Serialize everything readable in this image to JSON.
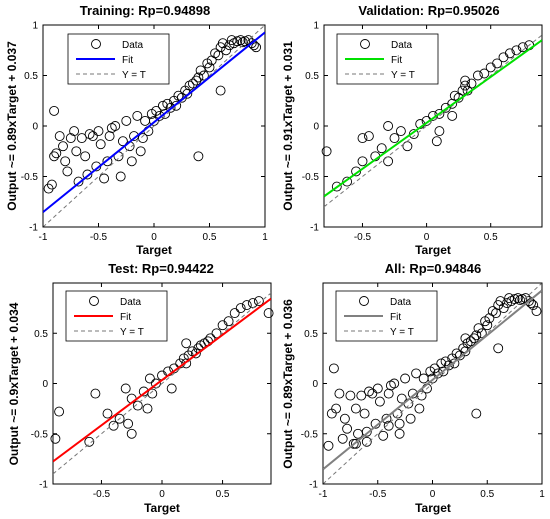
{
  "chart_data": [
    {
      "type": "scatter",
      "title": "Training: Rp=0.94898",
      "xlabel": "Target",
      "ylabel": "Output ~= 0.89xTarget + 0.037",
      "xlim": [
        -1,
        1
      ],
      "ylim": [
        -1,
        1
      ],
      "xticks": [
        "-1",
        "-0.5",
        "0",
        "0.5",
        "1"
      ],
      "yticks": [
        "-1",
        "-0.5",
        "0",
        "0.5",
        "1"
      ],
      "fit": {
        "slope": 0.89,
        "intercept": 0.037,
        "color": "#0000ff"
      },
      "legend": {
        "position": "top-left",
        "entries": [
          "Data",
          "Fit",
          "Y = T"
        ]
      },
      "grid": false,
      "points": [
        [
          -0.95,
          -0.62
        ],
        [
          -0.92,
          -0.58
        ],
        [
          -0.9,
          -0.3
        ],
        [
          -0.88,
          -0.27
        ],
        [
          -0.85,
          -0.1
        ],
        [
          -0.82,
          -0.2
        ],
        [
          -0.8,
          -0.35
        ],
        [
          -0.78,
          -0.45
        ],
        [
          -0.75,
          -0.12
        ],
        [
          -0.72,
          -0.05
        ],
        [
          -0.7,
          -0.25
        ],
        [
          -0.68,
          -0.55
        ],
        [
          -0.65,
          -0.12
        ],
        [
          -0.62,
          -0.3
        ],
        [
          -0.6,
          -0.48
        ],
        [
          -0.58,
          -0.08
        ],
        [
          -0.55,
          -0.1
        ],
        [
          -0.52,
          -0.4
        ],
        [
          -0.5,
          -0.05
        ],
        [
          -0.48,
          -0.18
        ],
        [
          -0.45,
          -0.52
        ],
        [
          -0.42,
          -0.35
        ],
        [
          -0.4,
          -0.1
        ],
        [
          -0.38,
          -0.02
        ],
        [
          -0.35,
          0.0
        ],
        [
          -0.32,
          -0.3
        ],
        [
          -0.3,
          -0.5
        ],
        [
          -0.28,
          -0.15
        ],
        [
          -0.25,
          0.05
        ],
        [
          -0.22,
          -0.2
        ],
        [
          -0.2,
          -0.35
        ],
        [
          -0.18,
          -0.1
        ],
        [
          -0.15,
          0.1
        ],
        [
          -0.12,
          -0.25
        ],
        [
          -0.1,
          -0.12
        ],
        [
          -0.08,
          0.05
        ],
        [
          -0.05,
          -0.05
        ],
        [
          -0.02,
          0.12
        ],
        [
          0.0,
          0.05
        ],
        [
          0.02,
          0.15
        ],
        [
          0.05,
          0.1
        ],
        [
          0.08,
          0.2
        ],
        [
          0.1,
          0.12
        ],
        [
          0.12,
          0.22
        ],
        [
          0.15,
          0.18
        ],
        [
          0.18,
          0.25
        ],
        [
          0.2,
          0.2
        ],
        [
          0.22,
          0.3
        ],
        [
          0.25,
          0.28
        ],
        [
          0.28,
          0.35
        ],
        [
          0.3,
          0.32
        ],
        [
          0.32,
          0.4
        ],
        [
          0.35,
          0.42
        ],
        [
          0.38,
          0.45
        ],
        [
          0.4,
          0.48
        ],
        [
          0.42,
          0.55
        ],
        [
          0.45,
          0.5
        ],
        [
          0.48,
          0.62
        ],
        [
          0.5,
          0.58
        ],
        [
          0.52,
          0.65
        ],
        [
          0.55,
          0.72
        ],
        [
          0.58,
          0.7
        ],
        [
          0.6,
          0.78
        ],
        [
          0.62,
          0.82
        ],
        [
          0.65,
          0.75
        ],
        [
          0.68,
          0.8
        ],
        [
          0.7,
          0.85
        ],
        [
          0.72,
          0.82
        ],
        [
          0.75,
          0.84
        ],
        [
          0.78,
          0.85
        ],
        [
          0.8,
          0.83
        ],
        [
          0.82,
          0.84
        ],
        [
          0.85,
          0.85
        ],
        [
          0.88,
          0.82
        ],
        [
          0.9,
          0.8
        ],
        [
          0.92,
          0.78
        ],
        [
          -0.9,
          0.15
        ],
        [
          0.4,
          -0.3
        ],
        [
          0.6,
          0.35
        ]
      ]
    },
    {
      "type": "scatter",
      "title": "Validation: Rp=0.95026",
      "xlabel": "Target",
      "ylabel": "Output ~= 0.91xTarget + 0.031",
      "xlim": [
        -0.8,
        0.9
      ],
      "ylim": [
        -1,
        1
      ],
      "xticks": [
        "-0.5",
        "0",
        "0.5"
      ],
      "yticks": [
        "-1",
        "-0.5",
        "0",
        "0.5",
        "1"
      ],
      "fit": {
        "slope": 0.91,
        "intercept": 0.031,
        "color": "#00e000"
      },
      "legend": {
        "position": "top-left",
        "entries": [
          "Data",
          "Fit",
          "Y = T"
        ]
      },
      "grid": false,
      "points": [
        [
          -0.78,
          -0.25
        ],
        [
          -0.7,
          -0.6
        ],
        [
          -0.62,
          -0.55
        ],
        [
          -0.55,
          -0.45
        ],
        [
          -0.5,
          -0.12
        ],
        [
          -0.45,
          -0.1
        ],
        [
          -0.4,
          -0.3
        ],
        [
          -0.35,
          -0.22
        ],
        [
          -0.3,
          -0.35
        ],
        [
          -0.25,
          -0.12
        ],
        [
          -0.2,
          -0.05
        ],
        [
          -0.15,
          -0.2
        ],
        [
          -0.1,
          -0.08
        ],
        [
          -0.05,
          0.02
        ],
        [
          0.0,
          0.05
        ],
        [
          0.05,
          0.1
        ],
        [
          0.08,
          -0.15
        ],
        [
          0.1,
          0.12
        ],
        [
          0.15,
          0.18
        ],
        [
          0.2,
          0.22
        ],
        [
          0.22,
          0.3
        ],
        [
          0.25,
          0.28
        ],
        [
          0.28,
          0.35
        ],
        [
          0.3,
          0.4
        ],
        [
          0.32,
          0.35
        ],
        [
          0.35,
          0.42
        ],
        [
          0.4,
          0.5
        ],
        [
          0.45,
          0.52
        ],
        [
          0.5,
          0.58
        ],
        [
          0.55,
          0.62
        ],
        [
          0.6,
          0.68
        ],
        [
          0.65,
          0.72
        ],
        [
          0.7,
          0.75
        ],
        [
          0.75,
          0.78
        ],
        [
          0.8,
          0.8
        ],
        [
          -0.5,
          -0.35
        ],
        [
          -0.3,
          0.0
        ],
        [
          0.3,
          0.45
        ],
        [
          0.2,
          0.1
        ],
        [
          0.1,
          -0.05
        ]
      ]
    },
    {
      "type": "scatter",
      "title": "Test: Rp=0.94422",
      "xlabel": "Target",
      "ylabel": "Output ~= 0.9xTarget + 0.034",
      "xlim": [
        -0.9,
        0.9
      ],
      "ylim": [
        -1,
        1
      ],
      "xticks": [
        "-0.5",
        "0",
        "0.5"
      ],
      "yticks": [
        "-1",
        "-0.5",
        "0",
        "0.5"
      ],
      "fit": {
        "slope": 0.9,
        "intercept": 0.034,
        "color": "#ff0000"
      },
      "legend": {
        "position": "top-left",
        "entries": [
          "Data",
          "Fit",
          "Y = T"
        ]
      },
      "grid": false,
      "points": [
        [
          -0.88,
          -0.55
        ],
        [
          -0.85,
          -0.28
        ],
        [
          -0.6,
          -0.58
        ],
        [
          -0.55,
          -0.1
        ],
        [
          -0.45,
          -0.3
        ],
        [
          -0.4,
          -0.42
        ],
        [
          -0.35,
          -0.35
        ],
        [
          -0.3,
          -0.05
        ],
        [
          -0.28,
          -0.4
        ],
        [
          -0.25,
          -0.15
        ],
        [
          -0.2,
          -0.22
        ],
        [
          -0.15,
          -0.08
        ],
        [
          -0.12,
          -0.25
        ],
        [
          -0.1,
          0.05
        ],
        [
          -0.08,
          -0.1
        ],
        [
          -0.05,
          0.0
        ],
        [
          0.0,
          0.08
        ],
        [
          0.05,
          0.12
        ],
        [
          0.08,
          -0.05
        ],
        [
          0.1,
          0.15
        ],
        [
          0.15,
          0.2
        ],
        [
          0.18,
          0.25
        ],
        [
          0.2,
          0.2
        ],
        [
          0.22,
          0.28
        ],
        [
          0.25,
          0.32
        ],
        [
          0.28,
          0.3
        ],
        [
          0.3,
          0.35
        ],
        [
          0.32,
          0.38
        ],
        [
          0.35,
          0.4
        ],
        [
          0.38,
          0.42
        ],
        [
          0.4,
          0.45
        ],
        [
          0.45,
          0.5
        ],
        [
          0.5,
          0.58
        ],
        [
          0.55,
          0.62
        ],
        [
          0.6,
          0.7
        ],
        [
          0.65,
          0.75
        ],
        [
          0.7,
          0.78
        ],
        [
          0.75,
          0.8
        ],
        [
          0.8,
          0.82
        ],
        [
          0.88,
          0.7
        ],
        [
          -0.25,
          -0.5
        ],
        [
          0.2,
          0.4
        ]
      ]
    },
    {
      "type": "scatter",
      "title": "All: Rp=0.94846",
      "xlabel": "Target",
      "ylabel": "Output ~= 0.89xTarget + 0.036",
      "xlim": [
        -1,
        1
      ],
      "ylim": [
        -1,
        1
      ],
      "xticks": [
        "-1",
        "-0.5",
        "0",
        "0.5",
        "1"
      ],
      "yticks": [
        "-1",
        "-0.5",
        "0",
        "0.5"
      ],
      "fit": {
        "slope": 0.89,
        "intercept": 0.036,
        "color": "#808080"
      },
      "legend": {
        "position": "top-left",
        "entries": [
          "Data",
          "Fit",
          "Y = T"
        ]
      },
      "grid": false,
      "points": [
        [
          -0.95,
          -0.62
        ],
        [
          -0.92,
          -0.3
        ],
        [
          -0.9,
          0.15
        ],
        [
          -0.88,
          -0.25
        ],
        [
          -0.85,
          -0.1
        ],
        [
          -0.82,
          -0.55
        ],
        [
          -0.8,
          -0.35
        ],
        [
          -0.78,
          -0.45
        ],
        [
          -0.75,
          -0.12
        ],
        [
          -0.72,
          -0.6
        ],
        [
          -0.7,
          -0.25
        ],
        [
          -0.68,
          -0.5
        ],
        [
          -0.65,
          -0.12
        ],
        [
          -0.62,
          -0.3
        ],
        [
          -0.6,
          -0.48
        ],
        [
          -0.58,
          -0.08
        ],
        [
          -0.55,
          -0.1
        ],
        [
          -0.52,
          -0.4
        ],
        [
          -0.5,
          -0.05
        ],
        [
          -0.48,
          -0.18
        ],
        [
          -0.45,
          -0.52
        ],
        [
          -0.42,
          -0.35
        ],
        [
          -0.4,
          -0.1
        ],
        [
          -0.38,
          -0.02
        ],
        [
          -0.35,
          0.0
        ],
        [
          -0.32,
          -0.3
        ],
        [
          -0.3,
          -0.5
        ],
        [
          -0.28,
          -0.15
        ],
        [
          -0.25,
          0.05
        ],
        [
          -0.22,
          -0.2
        ],
        [
          -0.2,
          -0.35
        ],
        [
          -0.18,
          -0.1
        ],
        [
          -0.15,
          0.1
        ],
        [
          -0.12,
          -0.25
        ],
        [
          -0.1,
          -0.12
        ],
        [
          -0.08,
          0.05
        ],
        [
          -0.05,
          -0.05
        ],
        [
          -0.02,
          0.12
        ],
        [
          0.0,
          0.05
        ],
        [
          0.02,
          0.15
        ],
        [
          0.05,
          0.1
        ],
        [
          0.08,
          0.2
        ],
        [
          0.1,
          0.12
        ],
        [
          0.12,
          0.22
        ],
        [
          0.15,
          0.18
        ],
        [
          0.18,
          0.25
        ],
        [
          0.2,
          0.2
        ],
        [
          0.22,
          0.3
        ],
        [
          0.25,
          0.28
        ],
        [
          0.28,
          0.35
        ],
        [
          0.3,
          0.32
        ],
        [
          0.32,
          0.4
        ],
        [
          0.35,
          0.42
        ],
        [
          0.38,
          0.45
        ],
        [
          0.4,
          0.48
        ],
        [
          0.42,
          0.55
        ],
        [
          0.45,
          0.5
        ],
        [
          0.48,
          0.62
        ],
        [
          0.5,
          0.58
        ],
        [
          0.52,
          0.65
        ],
        [
          0.55,
          0.72
        ],
        [
          0.58,
          0.7
        ],
        [
          0.6,
          0.78
        ],
        [
          0.62,
          0.82
        ],
        [
          0.65,
          0.75
        ],
        [
          0.68,
          0.8
        ],
        [
          0.7,
          0.85
        ],
        [
          0.72,
          0.82
        ],
        [
          0.75,
          0.84
        ],
        [
          0.78,
          0.85
        ],
        [
          0.8,
          0.83
        ],
        [
          0.82,
          0.84
        ],
        [
          0.85,
          0.85
        ],
        [
          0.88,
          0.82
        ],
        [
          0.9,
          0.8
        ],
        [
          0.92,
          0.78
        ],
        [
          0.95,
          0.72
        ],
        [
          -0.6,
          -0.58
        ],
        [
          -0.4,
          -0.42
        ],
        [
          -0.3,
          -0.4
        ],
        [
          0.4,
          -0.3
        ],
        [
          0.6,
          0.35
        ],
        [
          0.3,
          0.45
        ],
        [
          -0.7,
          -0.6
        ]
      ]
    }
  ]
}
